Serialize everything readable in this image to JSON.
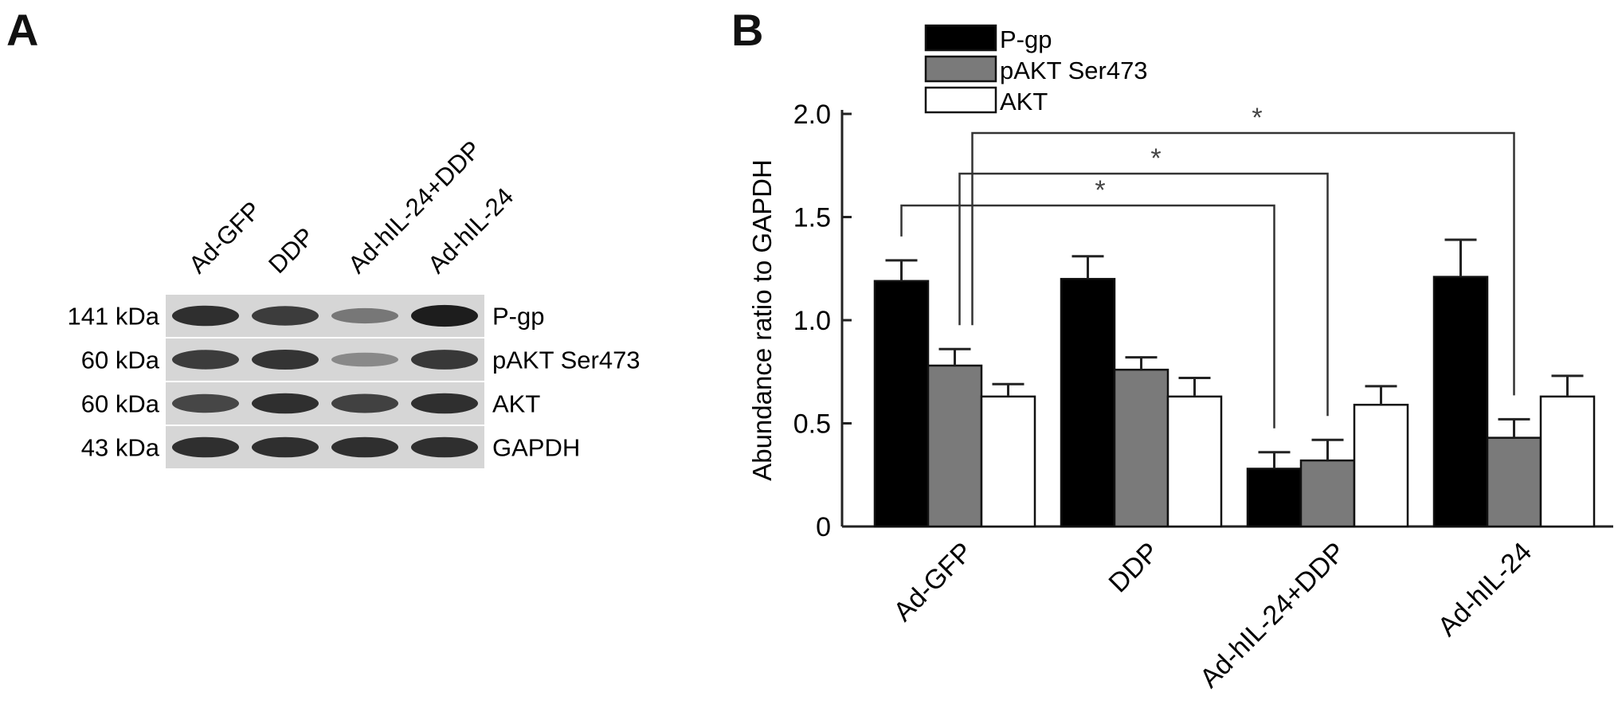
{
  "panels": {
    "a": "A",
    "b": "B"
  },
  "blot": {
    "lanes": [
      "Ad-GFP",
      "DDP",
      "Ad-hIL-24+DDP",
      "Ad-hIL-24"
    ],
    "rows": [
      {
        "weight": "141 kDa",
        "protein": "P-gp",
        "intensity": [
          0.85,
          0.78,
          0.45,
          0.95
        ]
      },
      {
        "weight": "60 kDa",
        "protein": "pAKT Ser473",
        "intensity": [
          0.78,
          0.82,
          0.35,
          0.8
        ]
      },
      {
        "weight": "60 kDa",
        "protein": "AKT",
        "intensity": [
          0.72,
          0.85,
          0.75,
          0.85
        ]
      },
      {
        "weight": "43 kDa",
        "protein": "GAPDH",
        "intensity": [
          0.85,
          0.85,
          0.85,
          0.85
        ]
      }
    ]
  },
  "chart_data": {
    "type": "bar",
    "title": "",
    "xlabel": "",
    "ylabel": "Abundance ratio to GAPDH",
    "ylim": [
      0,
      2.0
    ],
    "yticks": [
      "0",
      "0.5",
      "1.0",
      "1.5",
      "2.0"
    ],
    "categories": [
      "Ad-GFP",
      "DDP",
      "Ad-hIL-24+DDP",
      "Ad-hIL-24"
    ],
    "series": [
      {
        "name": "P-gp",
        "color": "#000000",
        "values": [
          1.19,
          1.2,
          0.28,
          1.21
        ],
        "errors": [
          0.1,
          0.11,
          0.08,
          0.18
        ]
      },
      {
        "name": "pAKT Ser473",
        "color": "#7a7a7a",
        "values": [
          0.78,
          0.76,
          0.32,
          0.43
        ],
        "errors": [
          0.08,
          0.06,
          0.1,
          0.09
        ]
      },
      {
        "name": "AKT",
        "color": "#ffffff",
        "values": [
          0.63,
          0.63,
          0.59,
          0.63
        ],
        "errors": [
          0.06,
          0.09,
          0.09,
          0.1
        ]
      }
    ],
    "legend_position": "top-left",
    "significance": [
      {
        "label": "*",
        "from": {
          "category": 0,
          "series": 0
        },
        "to": {
          "category": 2,
          "series": 0
        }
      },
      {
        "label": "*",
        "from": {
          "category": 0,
          "series": 1
        },
        "to": {
          "category": 2,
          "series": 1
        }
      },
      {
        "label": "*",
        "from": {
          "category": 0,
          "series": 1
        },
        "to": {
          "category": 3,
          "series": 1
        }
      }
    ]
  }
}
